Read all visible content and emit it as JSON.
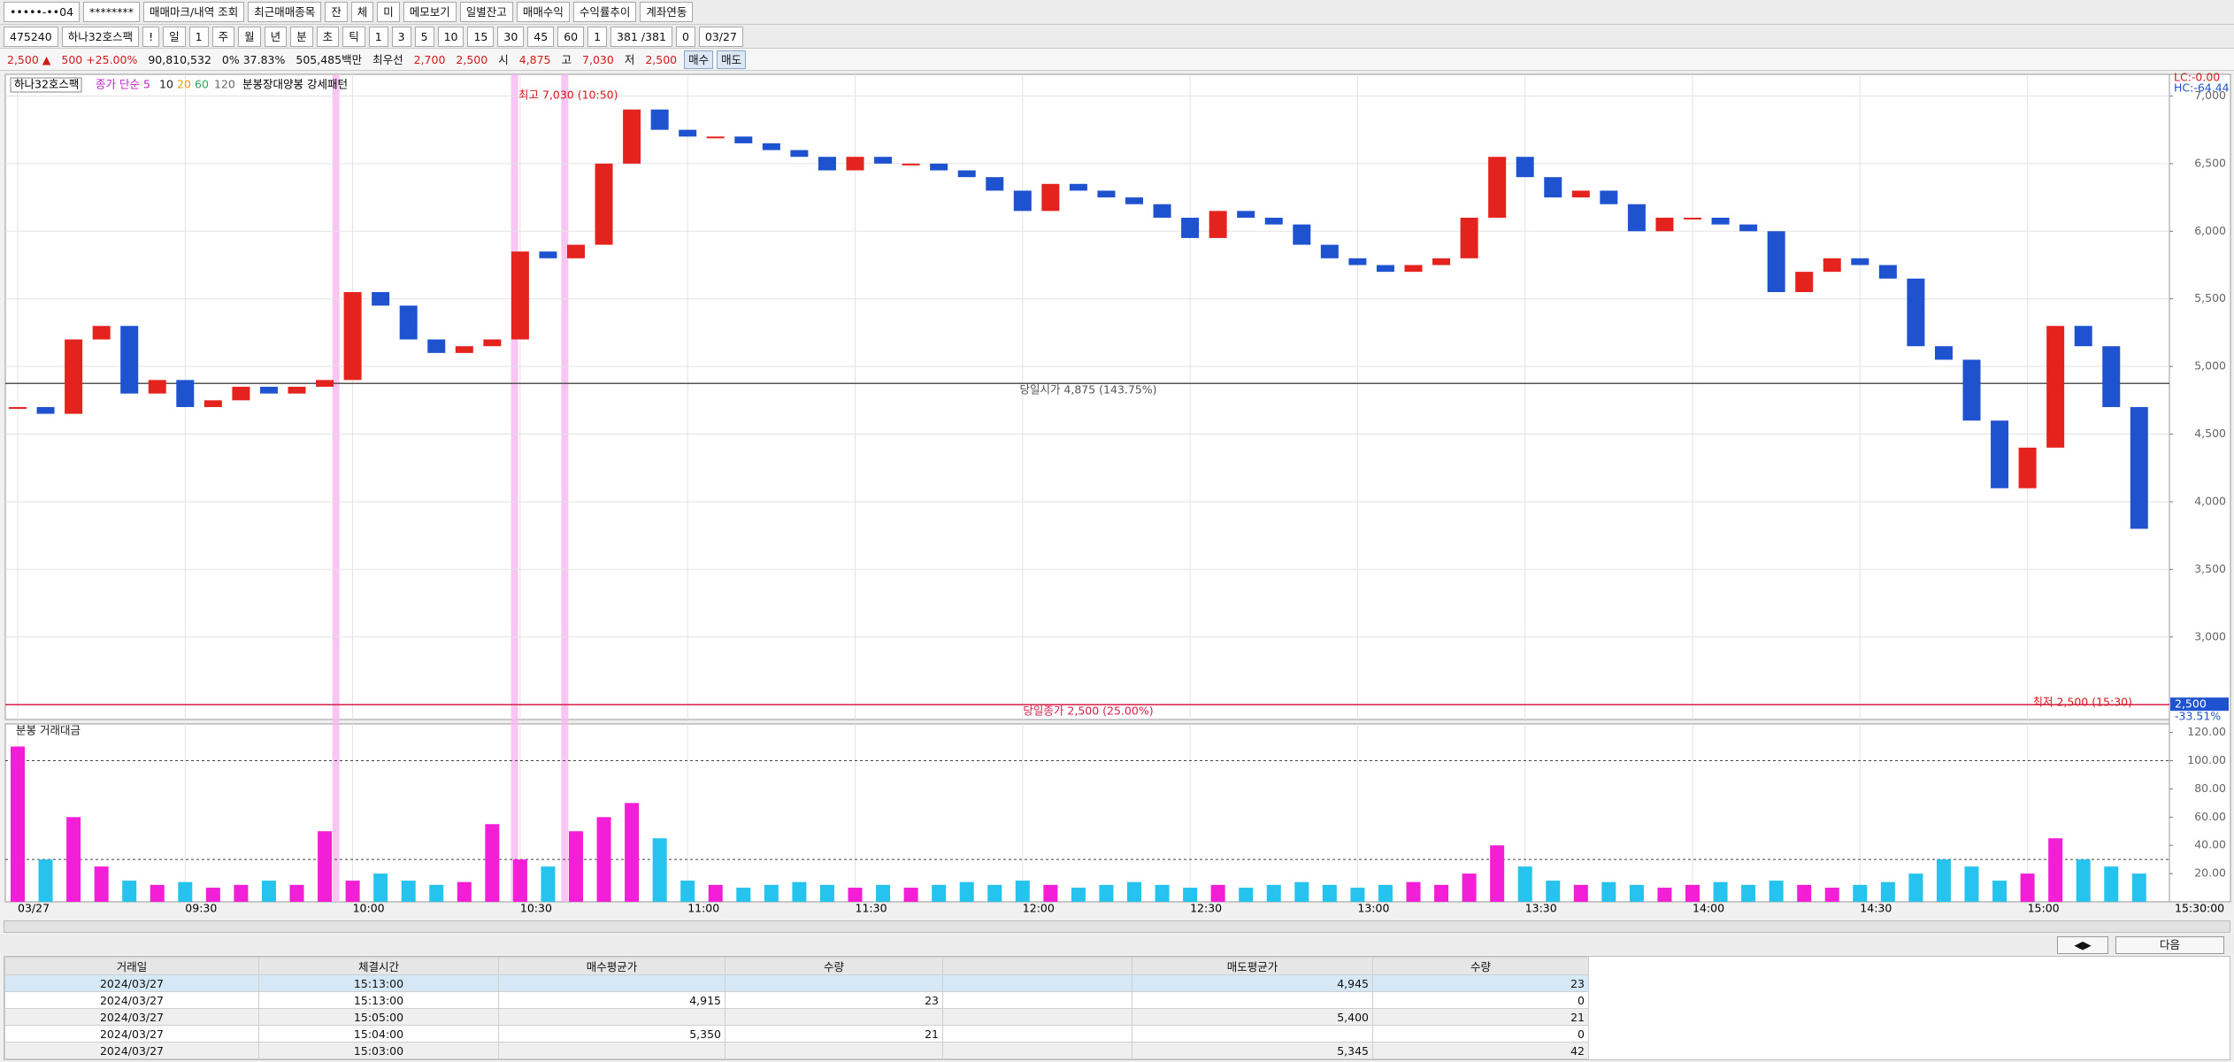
{
  "toolbar": {
    "row1": [
      "•••••-••04",
      "********",
      "매매마크/내역 조회",
      "최근매매종목",
      "잔",
      "체",
      "미",
      "메모보기",
      "일별잔고",
      "매매수익",
      "수익률추이",
      "계좌연동"
    ],
    "row2": [
      "475240",
      "하나32호스팩",
      "!",
      "일",
      "1",
      "주",
      "월",
      "년",
      "분",
      "초",
      "틱",
      "1",
      "3",
      "5",
      "10",
      "15",
      "30",
      "45",
      "60",
      "1",
      "381 /381",
      "0",
      "03/27"
    ]
  },
  "info_bar": [
    "2,500 ▲",
    "500 +25.00%",
    "90,810,532",
    "0% 37.83%",
    "505,485백만",
    "최우선",
    "2,700",
    "2,500",
    "시",
    "4,875",
    "고",
    "7,030",
    "저",
    "2,500",
    "매수",
    "매도"
  ],
  "chart_data": {
    "type": "candlestick",
    "header": {
      "symbol": "하나32호스팩",
      "ma_label": "종가 단순 5",
      "ma_periods": [
        "10",
        "20",
        "60",
        "120"
      ],
      "pattern": "분봉장대양봉 강세패턴"
    },
    "volume_title": "분봉 거래대금",
    "x": [
      "09:00",
      "09:05",
      "09:10",
      "09:15",
      "09:20",
      "09:25",
      "09:30",
      "09:35",
      "09:40",
      "09:45",
      "09:50",
      "09:55",
      "10:00",
      "10:05",
      "10:10",
      "10:15",
      "10:20",
      "10:25",
      "10:30",
      "10:35",
      "10:40",
      "10:45",
      "10:50",
      "10:55",
      "11:00",
      "11:05",
      "11:10",
      "11:15",
      "11:20",
      "11:25",
      "11:30",
      "11:35",
      "11:40",
      "11:45",
      "11:50",
      "11:55",
      "12:00",
      "12:05",
      "12:10",
      "12:15",
      "12:20",
      "12:25",
      "12:30",
      "12:35",
      "12:40",
      "12:45",
      "12:50",
      "12:55",
      "13:00",
      "13:05",
      "13:10",
      "13:15",
      "13:20",
      "13:25",
      "13:30",
      "13:35",
      "13:40",
      "13:45",
      "13:50",
      "13:55",
      "14:00",
      "14:05",
      "14:10",
      "14:15",
      "14:20",
      "14:25",
      "14:30",
      "14:35",
      "14:40",
      "14:45",
      "14:50",
      "14:55",
      "15:00",
      "15:05",
      "15:10",
      "15:15",
      "15:20"
    ],
    "close": [
      4700,
      4650,
      5200,
      5300,
      4800,
      4900,
      4700,
      4750,
      4850,
      4800,
      4850,
      4900,
      5550,
      5450,
      5200,
      5100,
      5150,
      5200,
      5850,
      5800,
      5900,
      6500,
      6900,
      6750,
      6700,
      6700,
      6650,
      6600,
      6550,
      6450,
      6550,
      6500,
      6500,
      6450,
      6400,
      6300,
      6150,
      6350,
      6300,
      6250,
      6200,
      6100,
      5950,
      6150,
      6100,
      6050,
      5900,
      5800,
      5750,
      5700,
      5750,
      5800,
      6100,
      6550,
      6400,
      6250,
      6300,
      6200,
      6000,
      6100,
      6100,
      6050,
      6000,
      5550,
      5700,
      5800,
      5750,
      5650,
      5150,
      5050,
      4600,
      4100,
      4400,
      5300,
      5150,
      4700,
      3800
    ],
    "volume": [
      110,
      30,
      60,
      25,
      15,
      12,
      14,
      10,
      12,
      15,
      12,
      50,
      15,
      20,
      15,
      12,
      14,
      55,
      30,
      25,
      50,
      60,
      70,
      45,
      15,
      12,
      10,
      12,
      14,
      12,
      10,
      12,
      10,
      12,
      14,
      12,
      15,
      12,
      10,
      12,
      14,
      12,
      10,
      12,
      10,
      12,
      14,
      12,
      10,
      12,
      14,
      12,
      20,
      40,
      25,
      15,
      12,
      14,
      12,
      10,
      12,
      14,
      12,
      15,
      12,
      10,
      12,
      14,
      20,
      30,
      25,
      15,
      20,
      45,
      30,
      25,
      20
    ],
    "up_color": "#e4221e",
    "down_color": "#1f52cf",
    "volume_up_color": "#f21fd6",
    "volume_down_color": "#25c3ee",
    "ylim": [
      2390,
      7160
    ],
    "yticks": [
      {
        "value": 3000,
        "label": "3,000"
      },
      {
        "value": 3500,
        "label": "3,500"
      },
      {
        "value": 4000,
        "label": "4,000"
      },
      {
        "value": 4500,
        "label": "4,500"
      },
      {
        "value": 5000,
        "label": "5,000"
      },
      {
        "value": 5500,
        "label": "5,500"
      },
      {
        "value": 6000,
        "label": "6,000"
      },
      {
        "value": 6500,
        "label": "6,500"
      },
      {
        "value": 7000,
        "label": "7,000"
      }
    ],
    "volume_ylim": [
      0,
      126
    ],
    "volume_yticks": [
      {
        "value": 20,
        "label": "20.00"
      },
      {
        "value": 40,
        "label": "40.00"
      },
      {
        "value": 60,
        "label": "60.00"
      },
      {
        "value": 80,
        "label": "80.00"
      },
      {
        "value": 100,
        "label": "100.00"
      },
      {
        "value": 120,
        "label": "120.00"
      }
    ],
    "volume_ref_lines": [
      100,
      30
    ],
    "xticks": [
      {
        "value": "09:00",
        "label": "03/27"
      },
      "09:30",
      "10:00",
      "10:30",
      "11:00",
      "11:30",
      "12:00",
      "12:30",
      "13:00",
      "13:30",
      "14:00",
      "14:30",
      "15:00"
    ],
    "axis_end_label": "15:30:00",
    "grid": true,
    "reference_lines": [
      {
        "value": 4875,
        "label": "당일시가 4,875 (143.75%)",
        "color": "#555555"
      },
      {
        "value": 2500,
        "label": "당일종가 2,500 (25.00%)",
        "color": "#d4224a"
      }
    ],
    "annotations": {
      "high": "최고 7,030 (10:50)",
      "low": "최저 2,500 (15:30)"
    },
    "corner_labels": [
      "LC:-0.00",
      "HC:-64.44"
    ],
    "current_price": {
      "value": 2500,
      "label": "2,500",
      "change": "-33.51%"
    }
  },
  "table": {
    "headers": [
      "거래일",
      "체결시간",
      "매수평균가",
      "수량",
      null,
      "매도평균가",
      "수량"
    ],
    "rows": [
      [
        "2024/03/27",
        "15:13:00",
        null,
        null,
        null,
        "4,945",
        "23"
      ],
      [
        "2024/03/27",
        "15:13:00",
        "4,915",
        "23",
        null,
        null,
        "0"
      ],
      [
        "2024/03/27",
        "15:05:00",
        null,
        null,
        null,
        "5,400",
        "21"
      ],
      [
        "2024/03/27",
        "15:04:00",
        "5,350",
        "21",
        null,
        null,
        "0"
      ],
      [
        "2024/03/27",
        "15:03:00",
        null,
        null,
        null,
        "5,345",
        "42"
      ]
    ]
  },
  "footer_buttons": [
    "다음"
  ]
}
